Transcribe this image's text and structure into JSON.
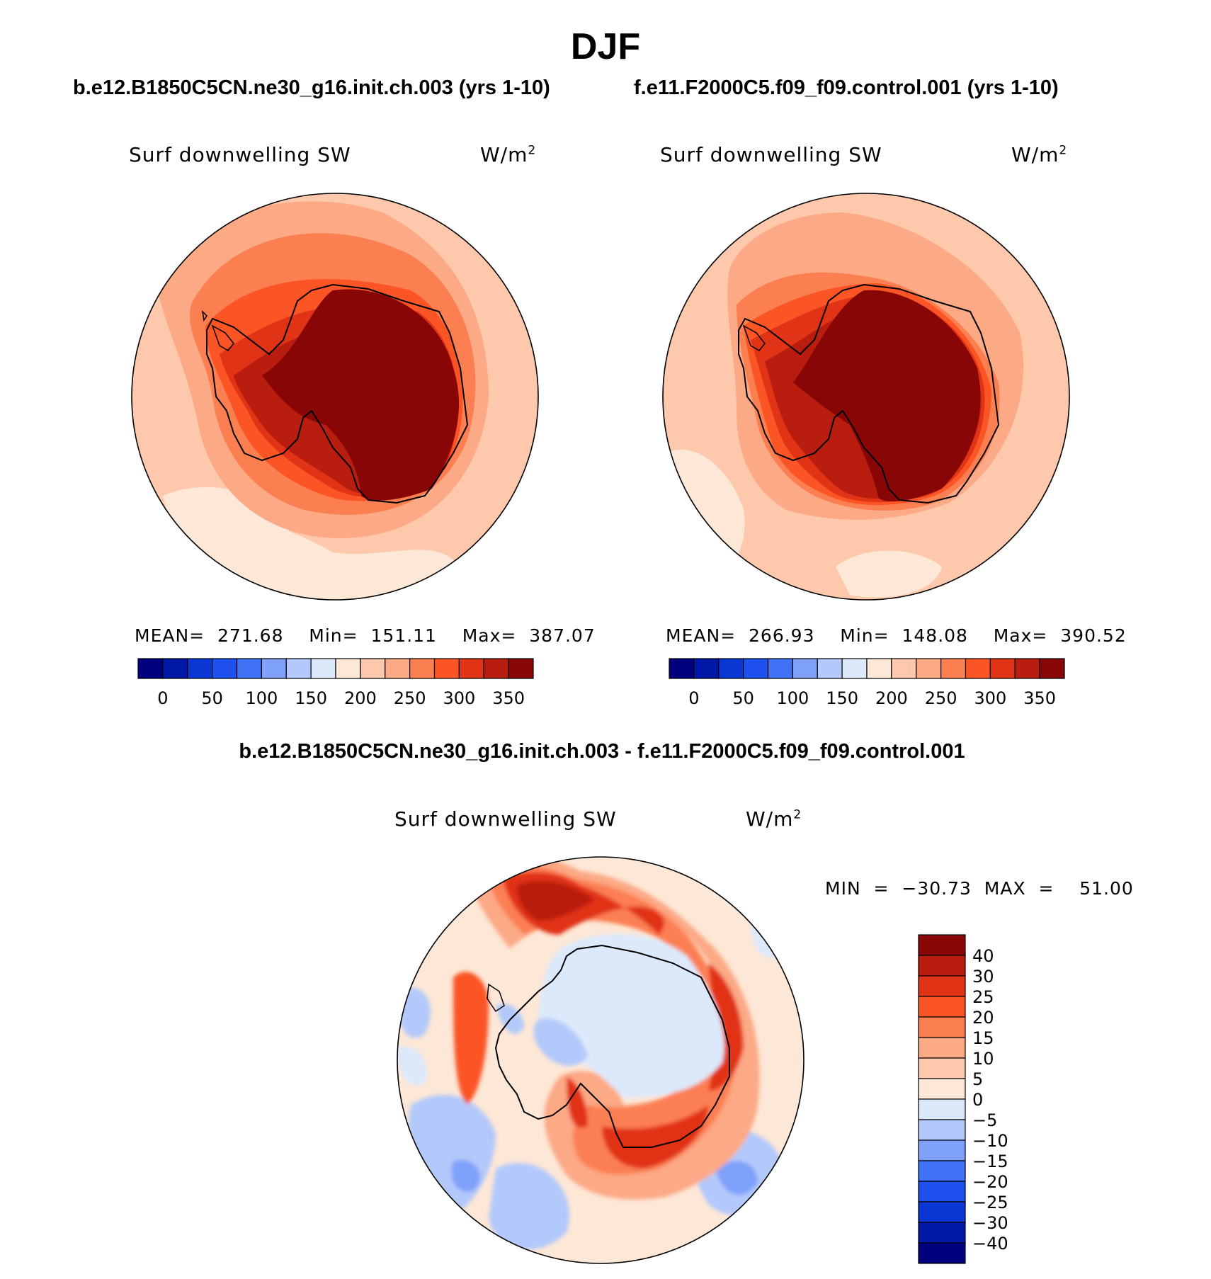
{
  "season": "DJF",
  "top_left": {
    "case": "b.e12.B1850C5CN.ne30_g16.init.ch.003 (yrs 1-10)",
    "variable": "Surf downwelling SW",
    "units": "W/m",
    "units_exp": "2",
    "stats": "MEAN=  271.68    Min=  151.11    Max=  387.07"
  },
  "top_right": {
    "case": "f.e11.F2000C5.f09_f09.control.001 (yrs 1-10)",
    "variable": "Surf downwelling SW",
    "units": "W/m",
    "units_exp": "2",
    "stats": "MEAN=  266.93    Min=  148.08    Max=  390.52"
  },
  "abs_colorbar": {
    "colors": [
      "#00007f",
      "#0018a8",
      "#0a36d4",
      "#1e50ee",
      "#3f72f5",
      "#7fa1fa",
      "#b3c9fb",
      "#dce9fb",
      "#fde7d6",
      "#fdc8ac",
      "#fca985",
      "#fc7f52",
      "#fb5526",
      "#e13315",
      "#b81d10",
      "#880606"
    ],
    "tick_labels": [
      "0",
      "50",
      "100",
      "150",
      "200",
      "250",
      "300",
      "350"
    ]
  },
  "diff": {
    "title": "b.e12.B1850C5CN.ne30_g16.init.ch.003 - f.e11.F2000C5.f09_f09.control.001",
    "variable": "Surf downwelling SW",
    "units": "W/m",
    "units_exp": "2",
    "minmax": "MIN  =  −30.73  MAX  =    51.00"
  },
  "diff_colorbar": {
    "colors": [
      "#880606",
      "#b81d10",
      "#e13315",
      "#fb5526",
      "#fc7f52",
      "#fca985",
      "#fdc8ac",
      "#fde7d6",
      "#dce9fb",
      "#b3c9fb",
      "#7fa1fa",
      "#3f72f5",
      "#1e50ee",
      "#0a36d4",
      "#0018a8",
      "#00007f"
    ],
    "tick_labels": [
      "40",
      "30",
      "25",
      "20",
      "15",
      "10",
      "5",
      "0",
      "−5",
      "−10",
      "−15",
      "−20",
      "−25",
      "−30",
      "−40"
    ]
  }
}
